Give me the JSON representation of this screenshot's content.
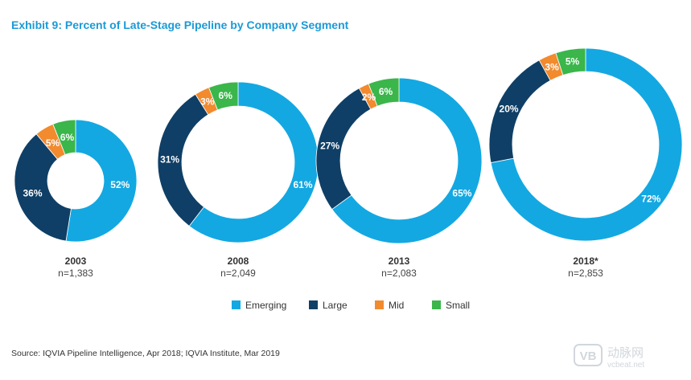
{
  "chart_data": {
    "type": "donut",
    "title": "Exhibit 9: Percent of Late-Stage Pipeline by Company Segment",
    "segments": [
      "Emerging",
      "Large",
      "Mid",
      "Small"
    ],
    "colors": {
      "Emerging": "#13a8e2",
      "Large": "#0f3f66",
      "Mid": "#f28a2e",
      "Small": "#3ab64a"
    },
    "legend_position": "bottom-center",
    "charts": [
      {
        "year": "2003",
        "n": "n=1,383",
        "values": {
          "Emerging": 52,
          "Large": 36,
          "Mid": 5,
          "Small": 6
        },
        "labels": {
          "Emerging": "52%",
          "Large": "36%",
          "Mid": "5%",
          "Small": "6%"
        }
      },
      {
        "year": "2008",
        "n": "n=2,049",
        "values": {
          "Emerging": 61,
          "Large": 31,
          "Mid": 3,
          "Small": 6
        },
        "labels": {
          "Emerging": "61%",
          "Large": "31%",
          "Mid": "3%",
          "Small": "6%"
        }
      },
      {
        "year": "2013",
        "n": "n=2,083",
        "values": {
          "Emerging": 65,
          "Large": 27,
          "Mid": 2,
          "Small": 6
        },
        "labels": {
          "Emerging": "65%",
          "Large": "27%",
          "Mid": "2%",
          "Small": "6%"
        }
      },
      {
        "year": "2018*",
        "n": "n=2,853",
        "values": {
          "Emerging": 72,
          "Large": 20,
          "Mid": 3,
          "Small": 5
        },
        "labels": {
          "Emerging": "72%",
          "Large": "20%",
          "Mid": "3%",
          "Small": "5%"
        }
      }
    ]
  },
  "source": "Source: IQVIA Pipeline Intelligence, Apr 2018; IQVIA Institute, Mar 2019",
  "watermark": {
    "logo_text": "VB",
    "brand_text": "动脉网",
    "url_text": "vcbeat.net"
  }
}
